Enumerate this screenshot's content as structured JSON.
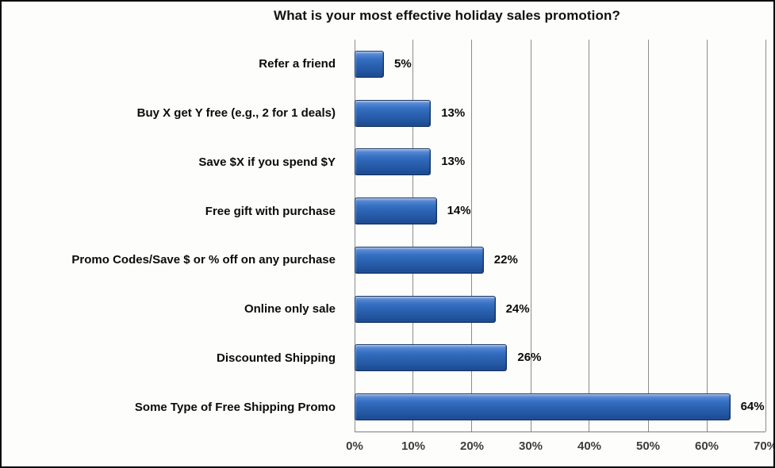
{
  "title": "What is your most effective holiday sales promotion?",
  "colors": {
    "bar_fill_main": "#2a61b0",
    "bar_fill_highlight": "#93b5e6",
    "bar_fill_shadow": "#1d4b92",
    "bar_border": "#163560",
    "gridline": "#8c8c8c",
    "axis_line": "#7f7f7f",
    "label_text": "#0b0b0b",
    "tick_text": "#3d3d3d",
    "frame_border": "#0a0a0a",
    "background": "#fdfdfc"
  },
  "chart_data": {
    "type": "bar",
    "orientation": "horizontal",
    "title": "What is your most effective holiday sales promotion?",
    "categories": [
      "Refer a friend",
      "Buy X get Y free (e.g., 2 for 1 deals)",
      "Save $X if you spend $Y",
      "Free gift with purchase",
      "Promo Codes/Save $ or % off on any purchase",
      "Online only sale",
      "Discounted Shipping",
      "Some Type of Free Shipping Promo"
    ],
    "values": [
      5,
      13,
      13,
      14,
      22,
      24,
      26,
      64
    ],
    "value_labels": [
      "5%",
      "13%",
      "13%",
      "14%",
      "22%",
      "24%",
      "26%",
      "64%"
    ],
    "xlabel": "",
    "ylabel": "",
    "xlim": [
      0,
      70
    ],
    "x_ticks": [
      0,
      10,
      20,
      30,
      40,
      50,
      60,
      70
    ],
    "x_tick_labels": [
      "0%",
      "10%",
      "20%",
      "30%",
      "40%",
      "50%",
      "60%",
      "70%"
    ],
    "grid": "vertical-gridlines-on",
    "legend": "none"
  }
}
